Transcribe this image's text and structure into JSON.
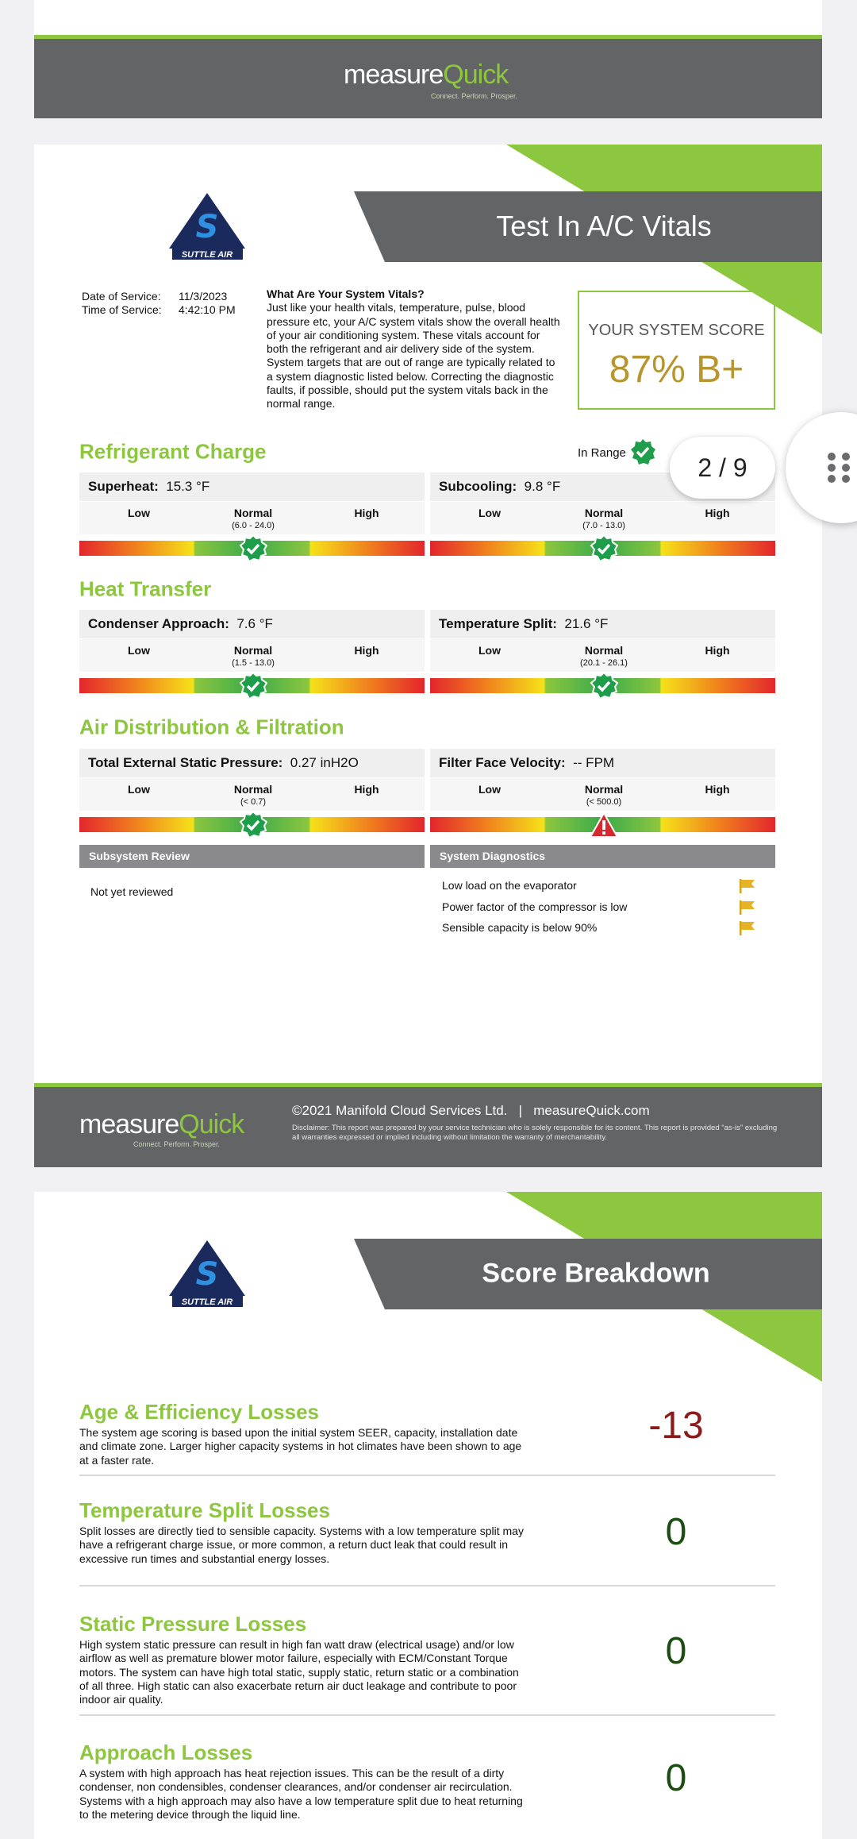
{
  "header": {
    "brand_prefix": "measure",
    "brand_suffix": "Quick",
    "tagline": "Connect. Perform. Prosper."
  },
  "vitals_page": {
    "company": "SUTTLE AIR",
    "title": "Test In A/C Vitals",
    "service": {
      "date_label": "Date of Service:",
      "date": "11/3/2023",
      "time_label": "Time of Service:",
      "time": "4:42:10 PM"
    },
    "intro": {
      "heading": "What Are Your System Vitals?",
      "body": "Just like your health vitals, temperature, pulse, blood pressure etc, your A/C system vitals show the overall health of your air conditioning system. These vitals account for both the refrigerant and air delivery side of the system. System targets that are out of range are typically related to a system diagnostic listed below. Correcting the diagnostic faults, if possible, should put the system vitals back in the normal range."
    },
    "score": {
      "label": "YOUR SYSTEM SCORE",
      "value": "87% B+"
    },
    "status": "In Range",
    "scale": {
      "low": "Low",
      "normal": "Normal",
      "high": "High"
    },
    "sections": [
      {
        "title": "Refrigerant Charge",
        "gauges": [
          {
            "label": "Superheat:",
            "reading": "15.3 °F",
            "range": "(6.0 - 24.0)",
            "marker": "check"
          },
          {
            "label": "Subcooling:",
            "reading": "9.8 °F",
            "range": "(7.0 - 13.0)",
            "marker": "check"
          }
        ]
      },
      {
        "title": "Heat Transfer",
        "gauges": [
          {
            "label": "Condenser Approach:",
            "reading": "7.6 °F",
            "range": "(1.5 - 13.0)",
            "marker": "check"
          },
          {
            "label": "Temperature Split:",
            "reading": "21.6 °F",
            "range": "(20.1 - 26.1)",
            "marker": "check"
          }
        ]
      },
      {
        "title": "Air Distribution & Filtration",
        "gauges": [
          {
            "label": "Total External Static Pressure:",
            "reading": "0.27 inH2O",
            "range": "(< 0.7)",
            "marker": "check"
          },
          {
            "label": "Filter Face Velocity:",
            "reading": "-- FPM",
            "range": "(< 500.0)",
            "marker": "warning"
          }
        ]
      }
    ],
    "subsystem": {
      "title": "Subsystem Review",
      "text": "Not yet reviewed"
    },
    "diagnostics": {
      "title": "System Diagnostics",
      "items": [
        "Low load on the evaporator",
        "Power factor of the compressor is low",
        "Sensible capacity is below 90%"
      ]
    },
    "footer": {
      "copyright": "©2021 Manifold Cloud Services Ltd.",
      "separator": "|",
      "site": "measureQuick.com",
      "disclaimer": "Disclaimer: This report was prepared by your service technician who is solely responsible for its content. This report is provided “as-is” excluding all warranties expressed or implied including without limitation the warranty of merchantability."
    }
  },
  "breakdown_page": {
    "title": "Score Breakdown",
    "items": [
      {
        "title": "Age & Efficiency Losses",
        "text": "The system age scoring is based upon the initial system SEER, capacity, installation date and climate zone. Larger higher capacity systems in hot climates have been shown to age at a faster rate.",
        "value": -13
      },
      {
        "title": "Temperature Split Losses",
        "text": "Split losses are directly tied to sensible capacity. Systems with a low temperature split may have a refrigerant charge issue, or more common, a return duct leak that could result in excessive run times and substantial energy losses.",
        "value": 0
      },
      {
        "title": "Static Pressure Losses",
        "text": "High system static pressure can result in high fan watt draw (electrical usage) and/or low airflow as well as premature blower motor failure, especially with ECM/Constant Torque motors. The system can have high total static, supply static, return static or a combination of all three. High static can also exacerbate return air duct leakage and contribute to poor indoor air quality.",
        "value": 0
      },
      {
        "title": "Approach Losses",
        "text": "A system with high approach has heat rejection issues. This can be the result of a dirty condenser, non condensibles, condenser clearances, and/or condenser air recirculation. Systems with a high approach may also have a low temperature split due to heat returning to the metering device through the liquid line.",
        "value": 0
      }
    ]
  },
  "viewer": {
    "page_indicator": "2 / 9"
  }
}
